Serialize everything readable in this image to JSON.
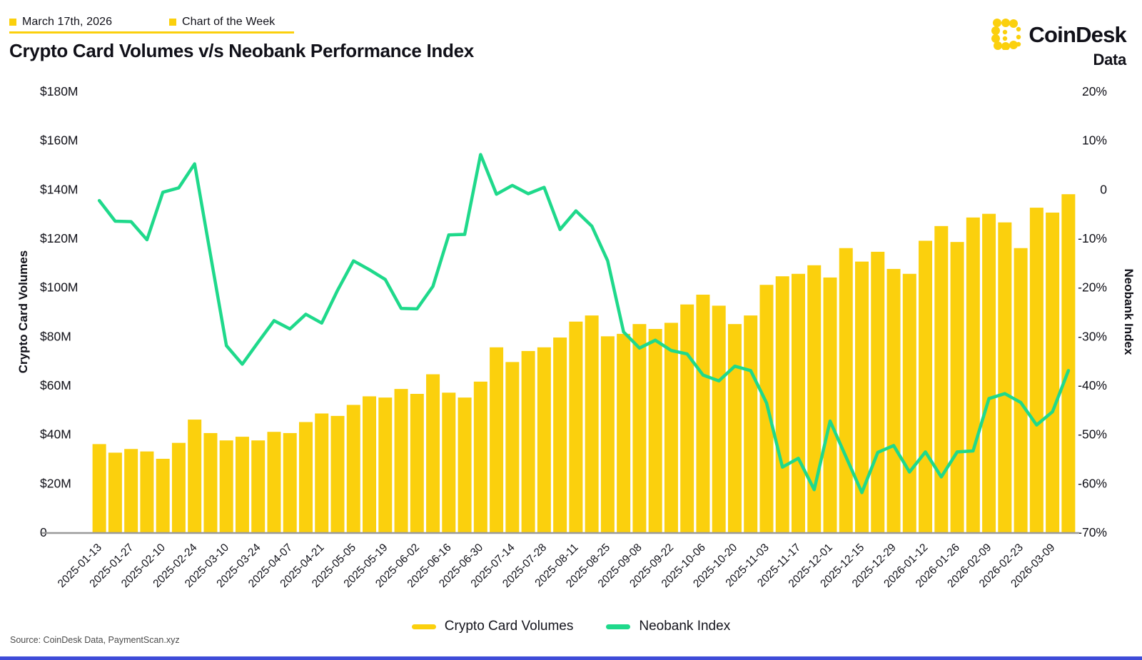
{
  "header": {
    "date_label": "March 17th, 2026",
    "series_label": "Chart of the Week"
  },
  "title": "Crypto Card Volumes v/s Neobank Performance Index",
  "logo": {
    "brand": "CoinDesk",
    "sub": "Data"
  },
  "source": "Source: CoinDesk Data, PaymentScan.xyz",
  "colors": {
    "accent_yellow": "#FBD00D",
    "line_green": "#1FD98B",
    "text_dark": "#101018",
    "axis_gray": "#9a9a9a",
    "source_gray": "#4b4b4b",
    "bottom_strip_blue": "#3E4BD8"
  },
  "legend": [
    {
      "label": "Crypto Card Volumes",
      "color": "#FBD00D",
      "type": "bar"
    },
    {
      "label": "Neobank Index",
      "color": "#1FD98B",
      "type": "line"
    }
  ],
  "chart_data": {
    "type": "bar",
    "subtype": "bar-plus-line-dual-axis",
    "grid": false,
    "legend_position": "bottom",
    "x": [
      "2025-01-13",
      "2025-01-20",
      "2025-01-27",
      "2025-02-03",
      "2025-02-10",
      "2025-02-17",
      "2025-02-24",
      "2025-03-03",
      "2025-03-10",
      "2025-03-17",
      "2025-03-24",
      "2025-03-31",
      "2025-04-07",
      "2025-04-14",
      "2025-04-21",
      "2025-04-28",
      "2025-05-05",
      "2025-05-12",
      "2025-05-19",
      "2025-05-26",
      "2025-06-02",
      "2025-06-09",
      "2025-06-16",
      "2025-06-23",
      "2025-06-30",
      "2025-07-07",
      "2025-07-14",
      "2025-07-21",
      "2025-07-28",
      "2025-08-04",
      "2025-08-11",
      "2025-08-18",
      "2025-08-25",
      "2025-09-01",
      "2025-09-08",
      "2025-09-15",
      "2025-09-22",
      "2025-09-29",
      "2025-10-06",
      "2025-10-13",
      "2025-10-20",
      "2025-10-27",
      "2025-11-03",
      "2025-11-10",
      "2025-11-17",
      "2025-11-24",
      "2025-12-01",
      "2025-12-08",
      "2025-12-15",
      "2025-12-22",
      "2025-12-29",
      "2026-01-05",
      "2026-01-12",
      "2026-01-19",
      "2026-01-26",
      "2026-02-02",
      "2026-02-09",
      "2026-02-16",
      "2026-02-23",
      "2026-03-02",
      "2026-03-09",
      "2026-03-16"
    ],
    "x_tick_labels": [
      "2025-01-13",
      "2025-01-27",
      "2025-02-10",
      "2025-02-24",
      "2025-03-10",
      "2025-03-24",
      "2025-04-07",
      "2025-04-21",
      "2025-05-05",
      "2025-05-19",
      "2025-06-02",
      "2025-06-16",
      "2025-06-30",
      "2025-07-14",
      "2025-07-28",
      "2025-08-11",
      "2025-08-25",
      "2025-09-08",
      "2025-09-22",
      "2025-10-06",
      "2025-10-20",
      "2025-11-03",
      "2025-11-17",
      "2025-12-01",
      "2025-12-15",
      "2025-12-29",
      "2026-01-12",
      "2026-01-26",
      "2026-02-09",
      "2026-02-23",
      "2026-03-09"
    ],
    "x_tick_every_n": 2,
    "series": [
      {
        "name": "Crypto Card Volumes",
        "type": "bar",
        "yaxis": "left",
        "unit": "USD millions",
        "color": "#FBD00D",
        "values": [
          36,
          32.5,
          34,
          33,
          30,
          36.5,
          46,
          40.5,
          37.5,
          39,
          37.5,
          41,
          40.5,
          45,
          48.5,
          47.5,
          52,
          55.5,
          55,
          58.5,
          56.5,
          64.5,
          57,
          55,
          61.5,
          75.5,
          69.5,
          74,
          75.5,
          79.5,
          86,
          88.5,
          80,
          81,
          85,
          83,
          85.5,
          93,
          97,
          92.5,
          85,
          88.5,
          101,
          104.5,
          105.5,
          109,
          104,
          116,
          110.5,
          114.5,
          107.5,
          105.5,
          119,
          125,
          118.5,
          128.5,
          130,
          126.5,
          116,
          132.5,
          130.5,
          138
        ]
      },
      {
        "name": "Neobank Index",
        "type": "line",
        "yaxis": "right",
        "unit": "percent",
        "color": "#1FD98B",
        "values": [
          -2.3,
          -6.5,
          -6.6,
          -10.3,
          -0.6,
          0.3,
          5.2,
          -13.4,
          -31.9,
          -35.7,
          -31.2,
          -26.8,
          -28.5,
          -25.5,
          -27.3,
          -20.6,
          -14.6,
          -16.4,
          -18.4,
          -24.3,
          -24.4,
          -19.8,
          -9.3,
          -9.2,
          7.1,
          -1.0,
          0.8,
          -0.9,
          0.4,
          -8.2,
          -4.4,
          -7.5,
          -14.6,
          -29.1,
          -32.4,
          -30.8,
          -32.9,
          -33.6,
          -37.9,
          -39.1,
          -36.1,
          -37.0,
          -43.6,
          -56.7,
          -54.9,
          -61.3,
          -47.3,
          -54.6,
          -61.9,
          -53.7,
          -52.3,
          -57.7,
          -53.6,
          -58.7,
          -53.6,
          -53.4,
          -42.7,
          -41.7,
          -43.5,
          -48.1,
          -45.4,
          -37.0
        ]
      }
    ],
    "left_axis": {
      "title": "Crypto Card Volumes",
      "range": [
        0,
        180
      ],
      "ticks": [
        {
          "value": 180,
          "label": "$180M"
        },
        {
          "value": 160,
          "label": "$160M"
        },
        {
          "value": 140,
          "label": "$140M"
        },
        {
          "value": 120,
          "label": "$120M"
        },
        {
          "value": 100,
          "label": "$100M"
        },
        {
          "value": 80,
          "label": "$80M"
        },
        {
          "value": 60,
          "label": "$60M"
        },
        {
          "value": 40,
          "label": "$40M"
        },
        {
          "value": 20,
          "label": "$20M"
        },
        {
          "value": 0,
          "label": "0"
        }
      ]
    },
    "right_axis": {
      "title": "Neobank Index",
      "range": [
        -70,
        20
      ],
      "ticks": [
        {
          "value": 20,
          "label": "20%"
        },
        {
          "value": 10,
          "label": "10%"
        },
        {
          "value": 0,
          "label": "0"
        },
        {
          "value": -10,
          "label": "-10%"
        },
        {
          "value": -20,
          "label": "-20%"
        },
        {
          "value": -30,
          "label": "-30%"
        },
        {
          "value": -40,
          "label": "-40%"
        },
        {
          "value": -50,
          "label": "-50%"
        },
        {
          "value": -60,
          "label": "-60%"
        },
        {
          "value": -70,
          "label": "-70%"
        }
      ]
    }
  }
}
